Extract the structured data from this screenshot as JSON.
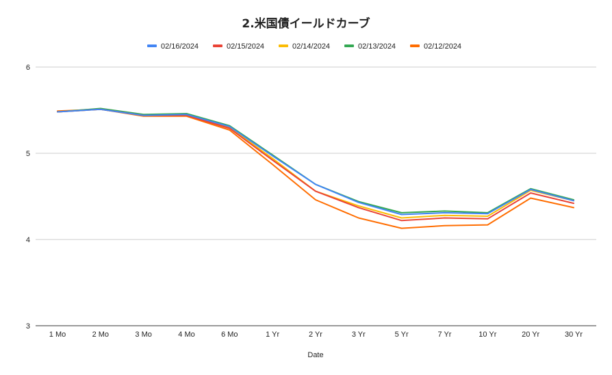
{
  "chart_data": {
    "type": "line",
    "title": "2.米国債イールドカーブ",
    "xlabel": "Date",
    "ylabel": "",
    "ylim": [
      3,
      6
    ],
    "yticks": [
      "6",
      "5",
      "4",
      "3"
    ],
    "grid": true,
    "legend_position": "top",
    "categories": [
      "1 Mo",
      "2 Mo",
      "3 Mo",
      "4 Mo",
      "6 Mo",
      "1 Yr",
      "2 Yr",
      "3 Yr",
      "5 Yr",
      "7 Yr",
      "10 Yr",
      "20 Yr",
      "30 Yr"
    ],
    "series": [
      {
        "name": "02/16/2024",
        "color": "#4285f4",
        "values": [
          5.48,
          5.51,
          5.44,
          5.45,
          5.31,
          4.97,
          4.64,
          4.43,
          4.29,
          4.31,
          4.3,
          4.58,
          4.45
        ]
      },
      {
        "name": "02/15/2024",
        "color": "#ea4335",
        "values": [
          5.48,
          5.51,
          5.44,
          5.44,
          5.29,
          4.92,
          4.56,
          4.37,
          4.22,
          4.25,
          4.24,
          4.54,
          4.42
        ]
      },
      {
        "name": "02/14/2024",
        "color": "#fbbc04",
        "values": [
          5.48,
          5.51,
          5.44,
          5.44,
          5.3,
          4.94,
          4.56,
          4.39,
          4.25,
          4.28,
          4.27,
          4.57,
          4.45
        ]
      },
      {
        "name": "02/13/2024",
        "color": "#34a853",
        "values": [
          5.48,
          5.52,
          5.45,
          5.46,
          5.32,
          4.98,
          4.64,
          4.44,
          4.31,
          4.33,
          4.31,
          4.59,
          4.46
        ]
      },
      {
        "name": "02/12/2024",
        "color": "#ff6d01",
        "values": [
          5.49,
          5.51,
          5.43,
          5.43,
          5.27,
          4.87,
          4.46,
          4.25,
          4.13,
          4.16,
          4.17,
          4.48,
          4.37
        ]
      }
    ]
  }
}
